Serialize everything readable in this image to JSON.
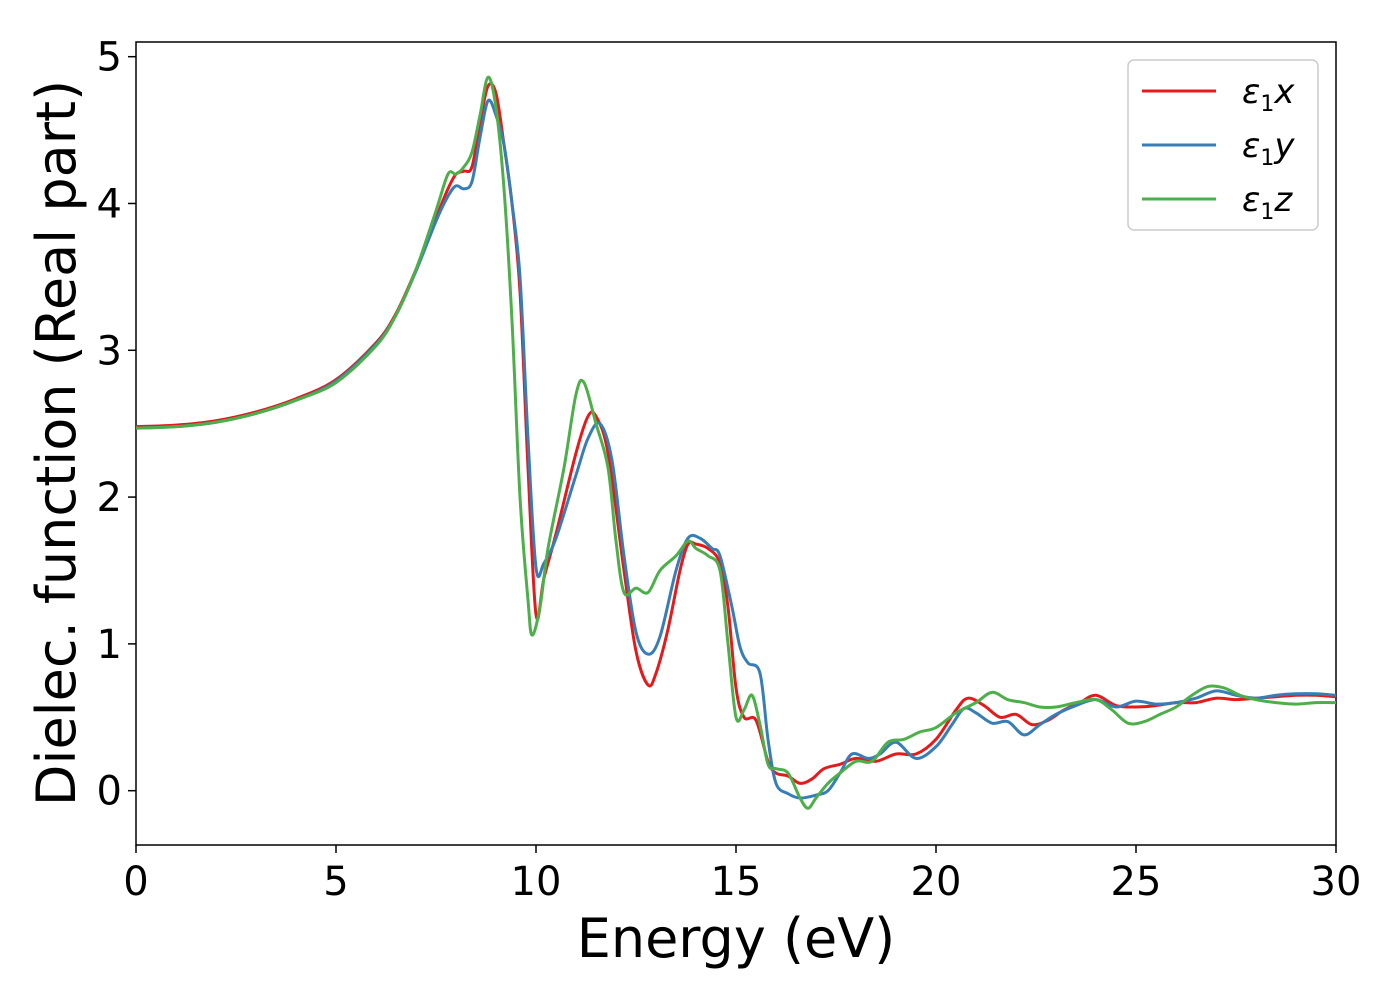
{
  "chart_data": {
    "type": "line",
    "xlabel": "Energy (eV)",
    "ylabel": "Dielec. function (Real part)",
    "xlim": [
      0,
      30
    ],
    "ylim": [
      -0.37,
      5.1
    ],
    "xticks": [
      "0",
      "5",
      "10",
      "15",
      "20",
      "25",
      "30"
    ],
    "yticks": [
      "0",
      "1",
      "2",
      "3",
      "4",
      "5"
    ],
    "grid": false,
    "legend_position": "top-right",
    "series": [
      {
        "name": "ε1x",
        "legend_symbol": "ε",
        "legend_sub": "1",
        "legend_var": "x",
        "color": "#e41a1c",
        "points": [
          [
            0,
            2.48
          ],
          [
            1,
            2.49
          ],
          [
            2,
            2.52
          ],
          [
            3,
            2.58
          ],
          [
            4,
            2.67
          ],
          [
            5,
            2.8
          ],
          [
            6,
            3.05
          ],
          [
            6.5,
            3.25
          ],
          [
            7,
            3.55
          ],
          [
            7.5,
            3.9
          ],
          [
            7.8,
            4.1
          ],
          [
            8.0,
            4.2
          ],
          [
            8.2,
            4.22
          ],
          [
            8.4,
            4.25
          ],
          [
            8.6,
            4.55
          ],
          [
            8.8,
            4.8
          ],
          [
            9.0,
            4.75
          ],
          [
            9.2,
            4.4
          ],
          [
            9.4,
            4.0
          ],
          [
            9.6,
            3.4
          ],
          [
            9.8,
            2.2
          ],
          [
            10.0,
            1.2
          ],
          [
            10.2,
            1.45
          ],
          [
            10.5,
            1.75
          ],
          [
            11.0,
            2.3
          ],
          [
            11.3,
            2.55
          ],
          [
            11.5,
            2.55
          ],
          [
            11.8,
            2.3
          ],
          [
            12.2,
            1.5
          ],
          [
            12.5,
            0.95
          ],
          [
            12.8,
            0.72
          ],
          [
            13.0,
            0.8
          ],
          [
            13.3,
            1.1
          ],
          [
            13.6,
            1.5
          ],
          [
            13.8,
            1.68
          ],
          [
            14.0,
            1.68
          ],
          [
            14.3,
            1.65
          ],
          [
            14.6,
            1.55
          ],
          [
            14.8,
            1.25
          ],
          [
            15.0,
            0.7
          ],
          [
            15.2,
            0.5
          ],
          [
            15.5,
            0.48
          ],
          [
            15.8,
            0.2
          ],
          [
            16.0,
            0.12
          ],
          [
            16.3,
            0.1
          ],
          [
            16.6,
            0.05
          ],
          [
            16.9,
            0.08
          ],
          [
            17.2,
            0.15
          ],
          [
            17.6,
            0.18
          ],
          [
            18.0,
            0.22
          ],
          [
            18.5,
            0.2
          ],
          [
            19.0,
            0.25
          ],
          [
            19.5,
            0.25
          ],
          [
            20.0,
            0.35
          ],
          [
            20.5,
            0.55
          ],
          [
            20.8,
            0.63
          ],
          [
            21.2,
            0.58
          ],
          [
            21.6,
            0.5
          ],
          [
            22.0,
            0.52
          ],
          [
            22.4,
            0.45
          ],
          [
            22.8,
            0.48
          ],
          [
            23.2,
            0.55
          ],
          [
            23.6,
            0.6
          ],
          [
            24.0,
            0.65
          ],
          [
            24.5,
            0.58
          ],
          [
            25.0,
            0.57
          ],
          [
            25.5,
            0.58
          ],
          [
            26.0,
            0.6
          ],
          [
            26.5,
            0.6
          ],
          [
            27.0,
            0.63
          ],
          [
            27.5,
            0.62
          ],
          [
            28.0,
            0.63
          ],
          [
            28.5,
            0.64
          ],
          [
            29.0,
            0.65
          ],
          [
            29.5,
            0.65
          ],
          [
            30.0,
            0.64
          ]
        ]
      },
      {
        "name": "ε1y",
        "legend_symbol": "ε",
        "legend_sub": "1",
        "legend_var": "y",
        "color": "#377eb8",
        "points": [
          [
            0,
            2.47
          ],
          [
            1,
            2.48
          ],
          [
            2,
            2.51
          ],
          [
            3,
            2.57
          ],
          [
            4,
            2.66
          ],
          [
            5,
            2.79
          ],
          [
            6,
            3.04
          ],
          [
            6.5,
            3.24
          ],
          [
            7,
            3.54
          ],
          [
            7.5,
            3.88
          ],
          [
            7.8,
            4.05
          ],
          [
            8.0,
            4.12
          ],
          [
            8.2,
            4.1
          ],
          [
            8.4,
            4.15
          ],
          [
            8.6,
            4.45
          ],
          [
            8.8,
            4.7
          ],
          [
            9.0,
            4.6
          ],
          [
            9.2,
            4.4
          ],
          [
            9.4,
            4.0
          ],
          [
            9.6,
            3.5
          ],
          [
            9.8,
            2.4
          ],
          [
            10.0,
            1.52
          ],
          [
            10.2,
            1.55
          ],
          [
            10.5,
            1.72
          ],
          [
            11.0,
            2.15
          ],
          [
            11.3,
            2.4
          ],
          [
            11.6,
            2.5
          ],
          [
            11.9,
            2.25
          ],
          [
            12.2,
            1.6
          ],
          [
            12.5,
            1.08
          ],
          [
            12.8,
            0.93
          ],
          [
            13.1,
            1.05
          ],
          [
            13.5,
            1.5
          ],
          [
            13.8,
            1.72
          ],
          [
            14.1,
            1.72
          ],
          [
            14.4,
            1.65
          ],
          [
            14.6,
            1.6
          ],
          [
            14.9,
            1.25
          ],
          [
            15.1,
            0.98
          ],
          [
            15.3,
            0.87
          ],
          [
            15.6,
            0.8
          ],
          [
            15.8,
            0.35
          ],
          [
            16.0,
            0.05
          ],
          [
            16.3,
            -0.02
          ],
          [
            16.6,
            -0.05
          ],
          [
            17.0,
            -0.03
          ],
          [
            17.3,
            0.0
          ],
          [
            17.6,
            0.12
          ],
          [
            17.9,
            0.25
          ],
          [
            18.3,
            0.22
          ],
          [
            18.6,
            0.25
          ],
          [
            19.0,
            0.33
          ],
          [
            19.5,
            0.22
          ],
          [
            20.0,
            0.3
          ],
          [
            20.4,
            0.45
          ],
          [
            20.7,
            0.56
          ],
          [
            21.0,
            0.53
          ],
          [
            21.4,
            0.46
          ],
          [
            21.8,
            0.47
          ],
          [
            22.2,
            0.38
          ],
          [
            22.6,
            0.45
          ],
          [
            23.0,
            0.52
          ],
          [
            23.5,
            0.58
          ],
          [
            24.0,
            0.62
          ],
          [
            24.5,
            0.57
          ],
          [
            25.0,
            0.61
          ],
          [
            25.5,
            0.59
          ],
          [
            26.0,
            0.6
          ],
          [
            26.5,
            0.63
          ],
          [
            27.0,
            0.68
          ],
          [
            27.5,
            0.65
          ],
          [
            28.0,
            0.63
          ],
          [
            28.5,
            0.65
          ],
          [
            29.0,
            0.66
          ],
          [
            29.5,
            0.66
          ],
          [
            30.0,
            0.65
          ]
        ]
      },
      {
        "name": "ε1z",
        "legend_symbol": "ε",
        "legend_sub": "1",
        "legend_var": "z",
        "color": "#4daf4a",
        "points": [
          [
            0,
            2.47
          ],
          [
            1,
            2.48
          ],
          [
            2,
            2.51
          ],
          [
            3,
            2.57
          ],
          [
            4,
            2.66
          ],
          [
            5,
            2.78
          ],
          [
            6,
            3.03
          ],
          [
            6.5,
            3.24
          ],
          [
            7,
            3.55
          ],
          [
            7.5,
            3.95
          ],
          [
            7.8,
            4.2
          ],
          [
            8.0,
            4.2
          ],
          [
            8.2,
            4.25
          ],
          [
            8.4,
            4.35
          ],
          [
            8.6,
            4.6
          ],
          [
            8.8,
            4.86
          ],
          [
            9.0,
            4.65
          ],
          [
            9.2,
            4.1
          ],
          [
            9.4,
            3.2
          ],
          [
            9.6,
            2.0
          ],
          [
            9.8,
            1.3
          ],
          [
            9.9,
            1.06
          ],
          [
            10.1,
            1.25
          ],
          [
            10.3,
            1.65
          ],
          [
            10.7,
            2.2
          ],
          [
            11.0,
            2.7
          ],
          [
            11.2,
            2.78
          ],
          [
            11.5,
            2.5
          ],
          [
            11.8,
            2.2
          ],
          [
            12.0,
            1.7
          ],
          [
            12.2,
            1.35
          ],
          [
            12.5,
            1.38
          ],
          [
            12.8,
            1.35
          ],
          [
            13.1,
            1.5
          ],
          [
            13.5,
            1.6
          ],
          [
            13.8,
            1.7
          ],
          [
            14.0,
            1.65
          ],
          [
            14.3,
            1.6
          ],
          [
            14.6,
            1.5
          ],
          [
            14.8,
            1.0
          ],
          [
            15.0,
            0.5
          ],
          [
            15.2,
            0.55
          ],
          [
            15.4,
            0.65
          ],
          [
            15.6,
            0.45
          ],
          [
            15.8,
            0.18
          ],
          [
            16.0,
            0.15
          ],
          [
            16.3,
            0.12
          ],
          [
            16.6,
            -0.05
          ],
          [
            16.8,
            -0.12
          ],
          [
            17.0,
            -0.05
          ],
          [
            17.3,
            0.05
          ],
          [
            17.6,
            0.12
          ],
          [
            18.0,
            0.2
          ],
          [
            18.4,
            0.2
          ],
          [
            18.8,
            0.33
          ],
          [
            19.2,
            0.35
          ],
          [
            19.6,
            0.4
          ],
          [
            20.0,
            0.43
          ],
          [
            20.5,
            0.53
          ],
          [
            21.0,
            0.6
          ],
          [
            21.4,
            0.67
          ],
          [
            21.8,
            0.62
          ],
          [
            22.2,
            0.6
          ],
          [
            22.6,
            0.57
          ],
          [
            23.0,
            0.57
          ],
          [
            23.5,
            0.6
          ],
          [
            24.0,
            0.62
          ],
          [
            24.4,
            0.55
          ],
          [
            24.8,
            0.46
          ],
          [
            25.2,
            0.47
          ],
          [
            25.6,
            0.52
          ],
          [
            26.0,
            0.57
          ],
          [
            26.4,
            0.65
          ],
          [
            26.8,
            0.71
          ],
          [
            27.2,
            0.7
          ],
          [
            27.6,
            0.65
          ],
          [
            28.0,
            0.62
          ],
          [
            28.5,
            0.6
          ],
          [
            29.0,
            0.59
          ],
          [
            29.5,
            0.6
          ],
          [
            30.0,
            0.6
          ]
        ]
      }
    ]
  }
}
